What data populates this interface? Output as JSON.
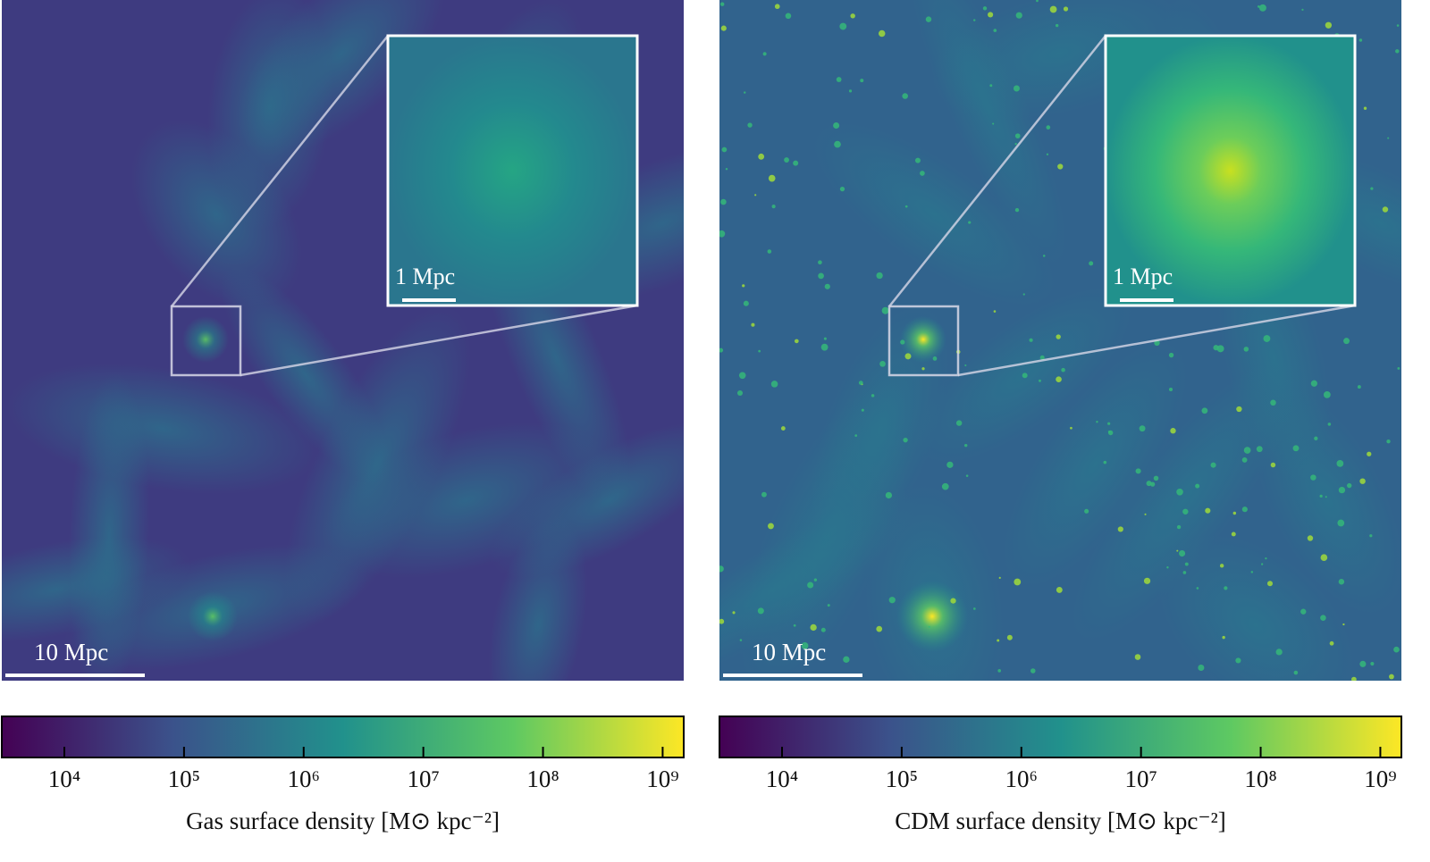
{
  "chart_data": [
    {
      "type": "image",
      "scale_bar_label": "10 Mpc",
      "inset_scale_bar_label": "1 Mpc",
      "colormap": [
        "#440154",
        "#3b528b",
        "#21918c",
        "#5ec962",
        "#fde725"
      ],
      "colorbar": {
        "label": "Gas surface density [M⊙ kpc⁻²]",
        "log": true,
        "lim": [
          3000,
          1500000000
        ],
        "ticks": [
          {
            "value": 10000,
            "label": "10⁴"
          },
          {
            "value": 100000,
            "label": "10⁵"
          },
          {
            "value": 1000000,
            "label": "10⁶"
          },
          {
            "value": 10000000,
            "label": "10⁷"
          },
          {
            "value": 100000000,
            "label": "10⁸"
          },
          {
            "value": 1000000000,
            "label": "10⁹"
          }
        ]
      }
    },
    {
      "type": "image",
      "scale_bar_label": "10 Mpc",
      "inset_scale_bar_label": "1 Mpc",
      "colormap": [
        "#440154",
        "#3b528b",
        "#21918c",
        "#5ec962",
        "#fde725"
      ],
      "colorbar": {
        "label": "CDM surface density [M⊙ kpc⁻²]",
        "log": true,
        "lim": [
          3000,
          1500000000
        ],
        "ticks": [
          {
            "value": 10000,
            "label": "10⁴"
          },
          {
            "value": 100000,
            "label": "10⁵"
          },
          {
            "value": 1000000,
            "label": "10⁶"
          },
          {
            "value": 10000000,
            "label": "10⁷"
          },
          {
            "value": 100000000,
            "label": "10⁸"
          },
          {
            "value": 1000000000,
            "label": "10⁹"
          }
        ]
      }
    }
  ]
}
